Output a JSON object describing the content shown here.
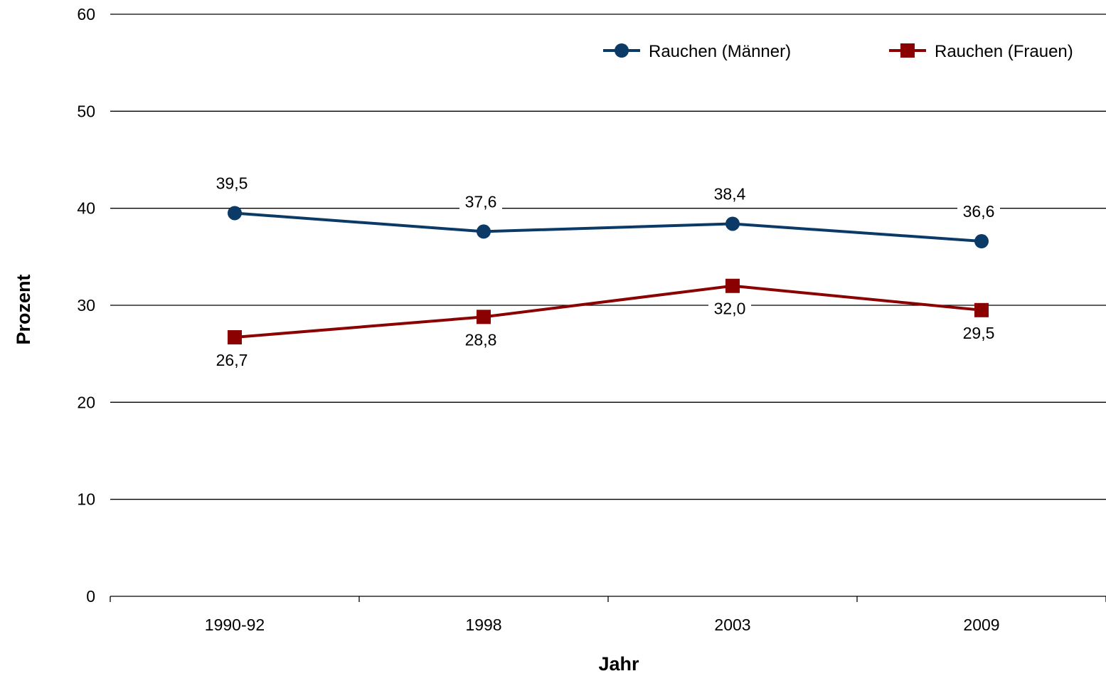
{
  "chart_data": {
    "type": "line",
    "categories": [
      "1990-92",
      "1998",
      "2003",
      "2009"
    ],
    "xlabel": "Jahr",
    "ylabel": "Prozent",
    "ylim": [
      0,
      60
    ],
    "yticks": [
      0,
      10,
      20,
      30,
      40,
      50,
      60
    ],
    "grid": true,
    "legend_position": "top-right",
    "series": [
      {
        "name": "Rauchen (Männer)",
        "values": [
          39.5,
          37.6,
          38.4,
          36.6
        ],
        "labels": [
          "39,5",
          "37,6",
          "38,4",
          "36,6"
        ],
        "color": "#0b3a66",
        "marker": "circle",
        "label_position": "above"
      },
      {
        "name": "Rauchen (Frauen)",
        "values": [
          26.7,
          28.8,
          32.0,
          29.5
        ],
        "labels": [
          "26,7",
          "28,8",
          "32,0",
          "29,5"
        ],
        "color": "#8b0000",
        "marker": "square",
        "label_position": "below"
      }
    ]
  }
}
